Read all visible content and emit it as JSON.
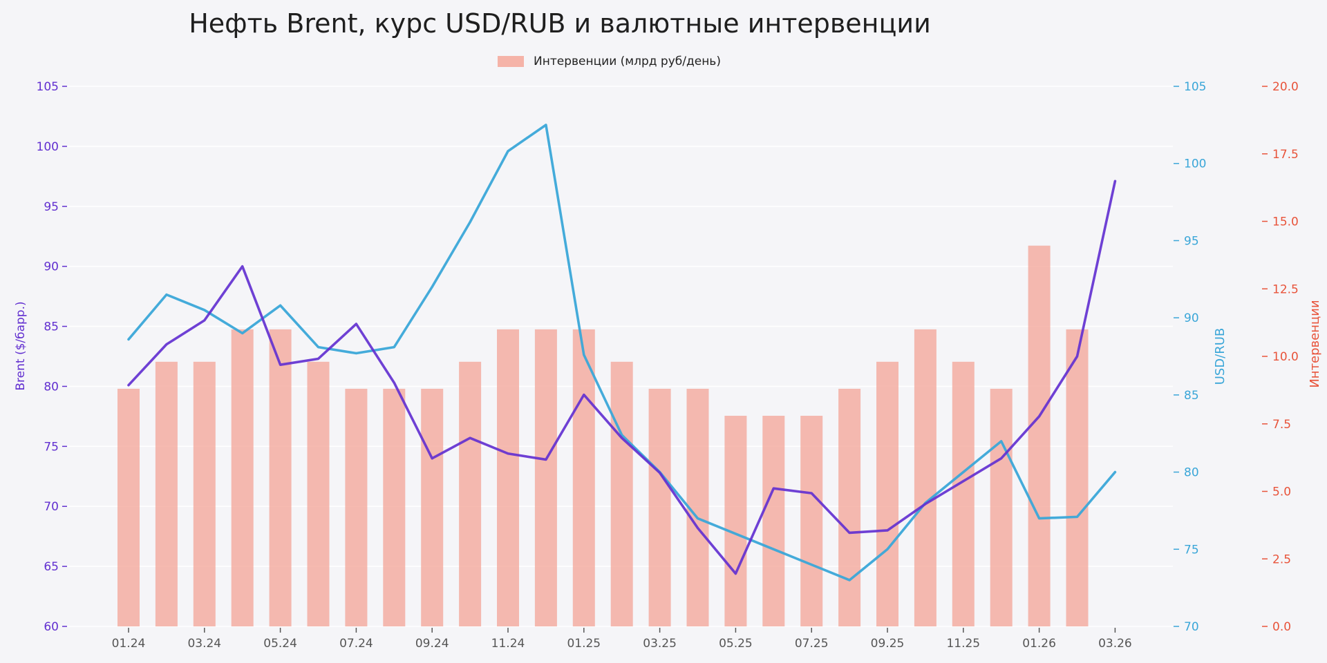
{
  "chart_data": {
    "type": "bar+line",
    "title": "Нефть Brent, курс USD/RUB и валютные интервенции",
    "categories": [
      "01.24",
      "02.24",
      "03.24",
      "04.24",
      "05.24",
      "06.24",
      "07.24",
      "08.24",
      "09.24",
      "10.24",
      "11.24",
      "12.24",
      "01.25",
      "02.25",
      "03.25",
      "04.25",
      "05.25",
      "06.25",
      "07.25",
      "08.25",
      "09.25",
      "10.25",
      "11.25",
      "12.25",
      "01.26",
      "02.26",
      "03.26"
    ],
    "x_tick_labels": [
      "01.24",
      "03.24",
      "05.24",
      "07.24",
      "09.24",
      "11.24",
      "01.25",
      "03.25",
      "05.25",
      "07.25",
      "09.25",
      "11.25",
      "01.26",
      "03.26"
    ],
    "series": [
      {
        "name": "Brent",
        "axis": "left",
        "kind": "line",
        "color": "#6230d0",
        "values": [
          80.1,
          83.5,
          85.5,
          90.0,
          81.8,
          82.3,
          85.2,
          80.3,
          74.0,
          75.7,
          74.4,
          73.9,
          79.3,
          75.7,
          72.8,
          68.2,
          64.4,
          71.5,
          71.1,
          67.8,
          68.0,
          70.2,
          72.1,
          74.0,
          77.5,
          82.5,
          97.1
        ]
      },
      {
        "name": "USD/RUB",
        "axis": "right1",
        "kind": "line",
        "color": "#3aa6d8",
        "values": [
          88.6,
          91.5,
          90.5,
          89.0,
          90.8,
          88.1,
          87.7,
          88.1,
          92.0,
          96.2,
          100.8,
          102.5,
          87.6,
          82.4,
          80.0,
          77.0,
          76.0,
          75.0,
          74.0,
          73.0,
          75.0,
          78.0,
          80.0,
          82.0,
          77.0,
          77.1,
          80.0
        ]
      },
      {
        "name": "Интервенции (млрд руб/день)",
        "axis": "right2",
        "kind": "bar",
        "color": "#f4a79a",
        "values": [
          8.8,
          9.8,
          9.8,
          11.0,
          11.0,
          9.8,
          8.8,
          8.8,
          8.8,
          9.8,
          11.0,
          11.0,
          11.0,
          9.8,
          8.8,
          8.8,
          7.8,
          7.8,
          7.8,
          8.8,
          9.8,
          11.0,
          9.8,
          8.8,
          14.1,
          11.0,
          null
        ]
      }
    ],
    "axes": {
      "left": {
        "label": "Brent ($/барр.)",
        "color": "#6230d0",
        "ylim": [
          60,
          105
        ],
        "ticks": [
          "60",
          "65",
          "70",
          "75",
          "80",
          "85",
          "90",
          "95",
          "100",
          "105"
        ]
      },
      "right1": {
        "label": "USD/RUB",
        "color": "#3aa6d8",
        "ylim": [
          70,
          105
        ],
        "ticks": [
          "70",
          "75",
          "80",
          "85",
          "90",
          "95",
          "100",
          "105"
        ]
      },
      "right2": {
        "label": "Интервенции",
        "color": "#e8533a",
        "ylim": [
          0,
          20
        ],
        "ticks": [
          "0.0",
          "2.5",
          "5.0",
          "7.5",
          "10.0",
          "12.5",
          "15.0",
          "17.5",
          "20.0"
        ]
      }
    },
    "legend": {
      "entries": [
        "Интервенции (млрд руб/день)"
      ],
      "placement": "top-center"
    },
    "grid": true
  }
}
